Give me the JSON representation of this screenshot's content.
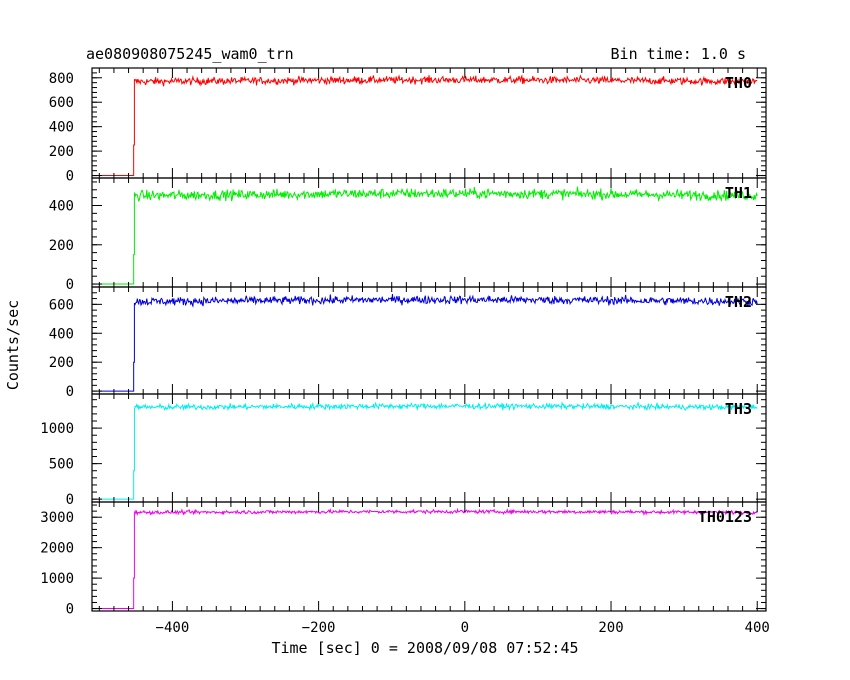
{
  "chart_data": {
    "type": "line",
    "title": "ae080908075245_wam0_trn",
    "bin_time_label": "Bin time: 1.0 s",
    "xlabel": "Time [sec] 0 = 2008/09/08 07:52:45",
    "ylabel": "Counts/sec",
    "xlim": [
      -510,
      412
    ],
    "x_ticks": [
      -400,
      -200,
      0,
      200,
      400
    ],
    "x_tick_labels": [
      "−400",
      "−200",
      "0",
      "200",
      "400"
    ],
    "step_time": -452,
    "series": [
      {
        "name": "TH0",
        "color": "#ff0000",
        "ylim": [
          -20,
          880
        ],
        "y_ticks": [
          0,
          200,
          400,
          600,
          800
        ],
        "y_tick_labels": [
          "0",
          "200",
          "400",
          "600",
          "800"
        ],
        "pre_level": 0,
        "mid_level": 250,
        "level": 775,
        "noise": 30,
        "end_time": 400
      },
      {
        "name": "TH1",
        "color": "#00ee00",
        "ylim": [
          -15,
          540
        ],
        "y_ticks": [
          0,
          200,
          400
        ],
        "y_tick_labels": [
          "0",
          "200",
          "400"
        ],
        "pre_level": 0,
        "mid_level": 150,
        "level": 455,
        "noise": 25,
        "end_time": 400
      },
      {
        "name": "TH2",
        "color": "#0000dd",
        "ylim": [
          -20,
          720
        ],
        "y_ticks": [
          0,
          200,
          400,
          600
        ],
        "y_tick_labels": [
          "0",
          "200",
          "400",
          "600"
        ],
        "pre_level": 0,
        "mid_level": 200,
        "level": 625,
        "noise": 28,
        "end_time": 400
      },
      {
        "name": "TH3",
        "color": "#00eeee",
        "ylim": [
          -40,
          1480
        ],
        "y_ticks": [
          0,
          500,
          1000
        ],
        "y_tick_labels": [
          "0",
          "500",
          "1000"
        ],
        "pre_level": 0,
        "mid_level": 400,
        "level": 1300,
        "noise": 38,
        "end_time": 400
      },
      {
        "name": "TH0123",
        "color": "#ee00ee",
        "ylim": [
          -80,
          3500
        ],
        "y_ticks": [
          0,
          1000,
          2000,
          3000
        ],
        "y_tick_labels": [
          "0",
          "1000",
          "2000",
          "3000"
        ],
        "pre_level": 0,
        "mid_level": 1000,
        "level": 3170,
        "noise": 55,
        "end_time": 400
      }
    ]
  }
}
